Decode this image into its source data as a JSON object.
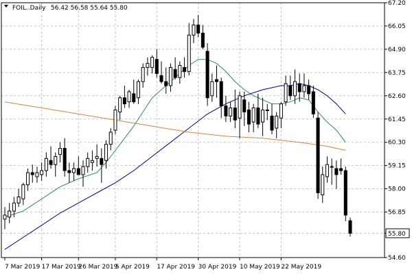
{
  "header": {
    "symbol_label": "FOIL..Daily",
    "ohlc_label": "56.42 56.58 55.64 55.80"
  },
  "price_badge": "55.80",
  "colors": {
    "background": "#ffffff",
    "grid": "#c0c0c0",
    "candle": "#000000",
    "ma_fast": "#2e8b57",
    "ma_mid": "#000080",
    "ma_slow": "#cd853f"
  },
  "chart_data": {
    "type": "candlestick",
    "title": "",
    "xlabel": "",
    "ylabel": "",
    "ylim": [
      54.6,
      67.2
    ],
    "grid": true,
    "y_ticks": [
      "67.20",
      "66.05",
      "64.90",
      "63.75",
      "62.60",
      "61.45",
      "60.30",
      "59.15",
      "58.00",
      "56.85",
      "55.80",
      "54.60"
    ],
    "x_ticks": [
      "7 Mar 2019",
      "17 Mar 2019",
      "26 Mar 2019",
      "5 Apr 2019",
      "17 Apr 2019",
      "30 Apr 2019",
      "10 May 2019",
      "22 May 2019"
    ],
    "candles": [
      [
        56.5,
        57.1,
        56.0,
        56.7
      ],
      [
        56.6,
        57.3,
        56.3,
        56.9
      ],
      [
        56.9,
        57.6,
        56.6,
        57.3
      ],
      [
        57.3,
        58.0,
        57.1,
        57.6
      ],
      [
        57.5,
        58.3,
        57.2,
        58.2
      ],
      [
        58.2,
        59.0,
        57.9,
        58.8
      ],
      [
        58.8,
        59.2,
        58.3,
        58.7
      ],
      [
        58.6,
        59.1,
        58.3,
        58.8
      ],
      [
        58.7,
        59.3,
        58.4,
        58.9
      ],
      [
        58.9,
        59.8,
        58.6,
        59.5
      ],
      [
        59.4,
        60.1,
        59.0,
        59.2
      ],
      [
        59.2,
        59.8,
        58.6,
        59.6
      ],
      [
        59.7,
        60.3,
        59.3,
        60.0
      ],
      [
        60.0,
        60.5,
        58.6,
        58.9
      ],
      [
        58.9,
        59.3,
        58.3,
        58.8
      ],
      [
        58.8,
        59.3,
        58.4,
        59.0
      ],
      [
        59.0,
        59.6,
        58.7,
        58.7
      ],
      [
        58.7,
        59.4,
        58.1,
        59.1
      ],
      [
        59.1,
        59.8,
        58.8,
        59.5
      ],
      [
        59.3,
        59.9,
        58.9,
        59.4
      ],
      [
        59.5,
        60.2,
        59.1,
        59.6
      ],
      [
        59.5,
        60.0,
        58.3,
        59.2
      ],
      [
        59.4,
        60.4,
        59.0,
        60.2
      ],
      [
        60.2,
        61.0,
        59.9,
        60.8
      ],
      [
        60.9,
        62.1,
        60.7,
        61.9
      ],
      [
        61.8,
        62.6,
        61.4,
        62.5
      ],
      [
        62.5,
        63.1,
        62.0,
        62.2
      ],
      [
        62.3,
        62.9,
        62.0,
        62.8
      ],
      [
        62.7,
        63.4,
        62.2,
        62.3
      ],
      [
        62.5,
        63.4,
        62.2,
        63.3
      ],
      [
        63.3,
        64.2,
        63.0,
        64.0
      ],
      [
        64.0,
        64.5,
        63.6,
        64.2
      ],
      [
        64.0,
        64.6,
        63.7,
        64.5
      ],
      [
        64.4,
        64.9,
        63.5,
        63.7
      ],
      [
        63.6,
        64.3,
        63.2,
        63.3
      ],
      [
        63.3,
        64.0,
        62.7,
        63.1
      ],
      [
        63.1,
        64.2,
        62.8,
        64.0
      ],
      [
        63.9,
        64.5,
        63.4,
        63.5
      ],
      [
        63.5,
        64.3,
        63.2,
        64.1
      ],
      [
        64.0,
        64.5,
        63.5,
        63.8
      ],
      [
        63.8,
        66.2,
        63.6,
        65.6
      ],
      [
        65.6,
        66.4,
        65.2,
        66.1
      ],
      [
        66.1,
        66.6,
        65.5,
        65.7
      ],
      [
        65.7,
        66.1,
        64.9,
        65.0
      ],
      [
        64.8,
        65.2,
        62.1,
        62.5
      ],
      [
        62.6,
        63.7,
        62.3,
        63.3
      ],
      [
        63.4,
        64.1,
        62.5,
        63.3
      ],
      [
        63.3,
        63.5,
        61.5,
        62.1
      ],
      [
        62.1,
        62.6,
        61.3,
        61.6
      ],
      [
        61.6,
        62.3,
        61.3,
        62.0
      ],
      [
        62.0,
        62.9,
        61.0,
        61.4
      ],
      [
        61.5,
        62.8,
        60.5,
        62.6
      ],
      [
        62.4,
        62.8,
        61.1,
        61.8
      ],
      [
        61.9,
        62.3,
        60.8,
        61.2
      ],
      [
        61.3,
        62.2,
        60.8,
        62.0
      ],
      [
        62.0,
        62.7,
        61.0,
        61.2
      ],
      [
        61.3,
        62.5,
        60.6,
        61.9
      ],
      [
        61.9,
        62.2,
        61.4,
        61.9
      ],
      [
        61.6,
        62.2,
        60.7,
        60.9
      ],
      [
        61.0,
        61.8,
        60.5,
        61.6
      ],
      [
        61.5,
        62.3,
        61.0,
        62.2
      ],
      [
        62.3,
        63.6,
        62.1,
        63.2
      ],
      [
        63.1,
        63.6,
        62.4,
        62.6
      ],
      [
        62.6,
        63.9,
        62.2,
        63.3
      ],
      [
        63.2,
        63.7,
        62.3,
        62.8
      ],
      [
        62.8,
        63.7,
        62.5,
        63.1
      ],
      [
        63.1,
        63.4,
        62.4,
        62.7
      ],
      [
        62.8,
        63.1,
        61.5,
        61.7
      ],
      [
        61.5,
        61.8,
        57.5,
        57.8
      ],
      [
        57.7,
        59.1,
        57.3,
        58.7
      ],
      [
        58.6,
        59.6,
        58.3,
        59.2
      ],
      [
        59.1,
        59.5,
        58.2,
        59.1
      ],
      [
        59.0,
        59.4,
        58.0,
        58.7
      ],
      [
        59.0,
        59.5,
        58.7,
        58.9
      ],
      [
        58.9,
        59.1,
        56.4,
        56.7
      ],
      [
        56.42,
        56.58,
        55.64,
        55.8
      ]
    ],
    "series": [
      {
        "color": "#2e8b57",
        "values": [
          [
            0,
            56.6
          ],
          [
            4,
            56.9
          ],
          [
            8,
            57.5
          ],
          [
            12,
            58.1
          ],
          [
            16,
            58.5
          ],
          [
            20,
            58.8
          ],
          [
            22,
            59.3
          ],
          [
            24,
            59.9
          ],
          [
            26,
            60.5
          ],
          [
            28,
            61.1
          ],
          [
            30,
            61.8
          ],
          [
            32,
            62.5
          ],
          [
            34,
            62.9
          ],
          [
            36,
            63.3
          ],
          [
            38,
            63.7
          ],
          [
            40,
            64.1
          ],
          [
            42,
            64.4
          ],
          [
            44,
            64.4
          ],
          [
            46,
            64.2
          ],
          [
            48,
            63.8
          ],
          [
            50,
            63.3
          ],
          [
            52,
            62.9
          ],
          [
            54,
            62.6
          ],
          [
            56,
            62.4
          ],
          [
            58,
            62.2
          ],
          [
            60,
            62.2
          ],
          [
            62,
            62.3
          ],
          [
            64,
            62.5
          ],
          [
            66,
            62.4
          ],
          [
            68,
            61.8
          ],
          [
            70,
            61.3
          ],
          [
            72,
            60.9
          ],
          [
            74,
            60.3
          ]
        ]
      },
      {
        "color": "#000080",
        "values": [
          [
            0,
            55.0
          ],
          [
            4,
            55.6
          ],
          [
            8,
            56.2
          ],
          [
            12,
            56.8
          ],
          [
            16,
            57.3
          ],
          [
            20,
            57.8
          ],
          [
            24,
            58.3
          ],
          [
            28,
            58.9
          ],
          [
            32,
            59.6
          ],
          [
            36,
            60.3
          ],
          [
            40,
            61.0
          ],
          [
            44,
            61.7
          ],
          [
            48,
            62.2
          ],
          [
            52,
            62.6
          ],
          [
            56,
            62.9
          ],
          [
            60,
            63.1
          ],
          [
            62,
            63.1
          ],
          [
            64,
            63.2
          ],
          [
            66,
            63.1
          ],
          [
            68,
            62.9
          ],
          [
            70,
            62.6
          ],
          [
            72,
            62.2
          ],
          [
            74,
            61.7
          ]
        ]
      },
      {
        "color": "#cd853f",
        "values": [
          [
            0,
            62.3
          ],
          [
            8,
            62.0
          ],
          [
            16,
            61.7
          ],
          [
            24,
            61.4
          ],
          [
            32,
            61.1
          ],
          [
            40,
            60.8
          ],
          [
            48,
            60.6
          ],
          [
            56,
            60.5
          ],
          [
            64,
            60.3
          ],
          [
            70,
            60.1
          ],
          [
            74,
            59.9
          ]
        ]
      }
    ]
  }
}
